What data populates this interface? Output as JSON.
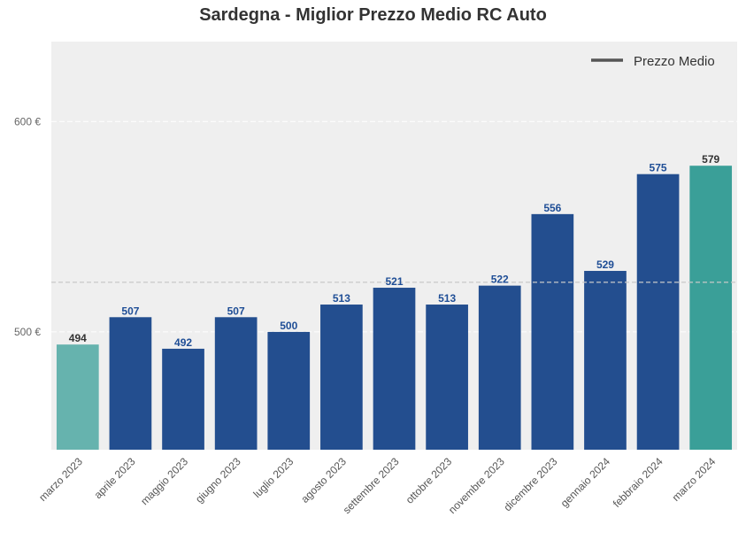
{
  "chart_data": {
    "type": "bar",
    "title": "Sardegna - Miglior Prezzo Medio RC Auto",
    "xlabel": "",
    "ylabel": "",
    "categories": [
      "marzo 2023",
      "aprile 2023",
      "maggio 2023",
      "giugno 2023",
      "luglio 2023",
      "agosto 2023",
      "settembre 2023",
      "ottobre 2023",
      "novembre 2023",
      "dicembre 2023",
      "gennaio 2024",
      "febbraio 2024",
      "marzo 2024"
    ],
    "values": [
      494,
      507,
      492,
      507,
      500,
      513,
      521,
      513,
      522,
      556,
      529,
      575,
      579
    ],
    "value_labels": [
      "494",
      "507",
      "492",
      "507",
      "500",
      "513",
      "521",
      "513",
      "522",
      "556",
      "529",
      "575",
      "579"
    ],
    "ylim": [
      444,
      638
    ],
    "yticks": [
      500,
      600
    ],
    "ytick_labels": [
      "500 €",
      "600 €"
    ],
    "reference_line": {
      "name": "Prezzo Medio",
      "value": 523.6
    },
    "legend": {
      "entries": [
        "Prezzo Medio"
      ],
      "placement": "top-right"
    },
    "grid": true,
    "colors": {
      "bar": "#234e8f",
      "first_bar": "#66b3ae",
      "last_bar": "#3a9f98",
      "bar_label": "#1f4e96",
      "edge_label": "#333333",
      "plot_bg": "#efefef",
      "reference_line": "#c8c8c8",
      "legend_line": "#555555"
    }
  }
}
